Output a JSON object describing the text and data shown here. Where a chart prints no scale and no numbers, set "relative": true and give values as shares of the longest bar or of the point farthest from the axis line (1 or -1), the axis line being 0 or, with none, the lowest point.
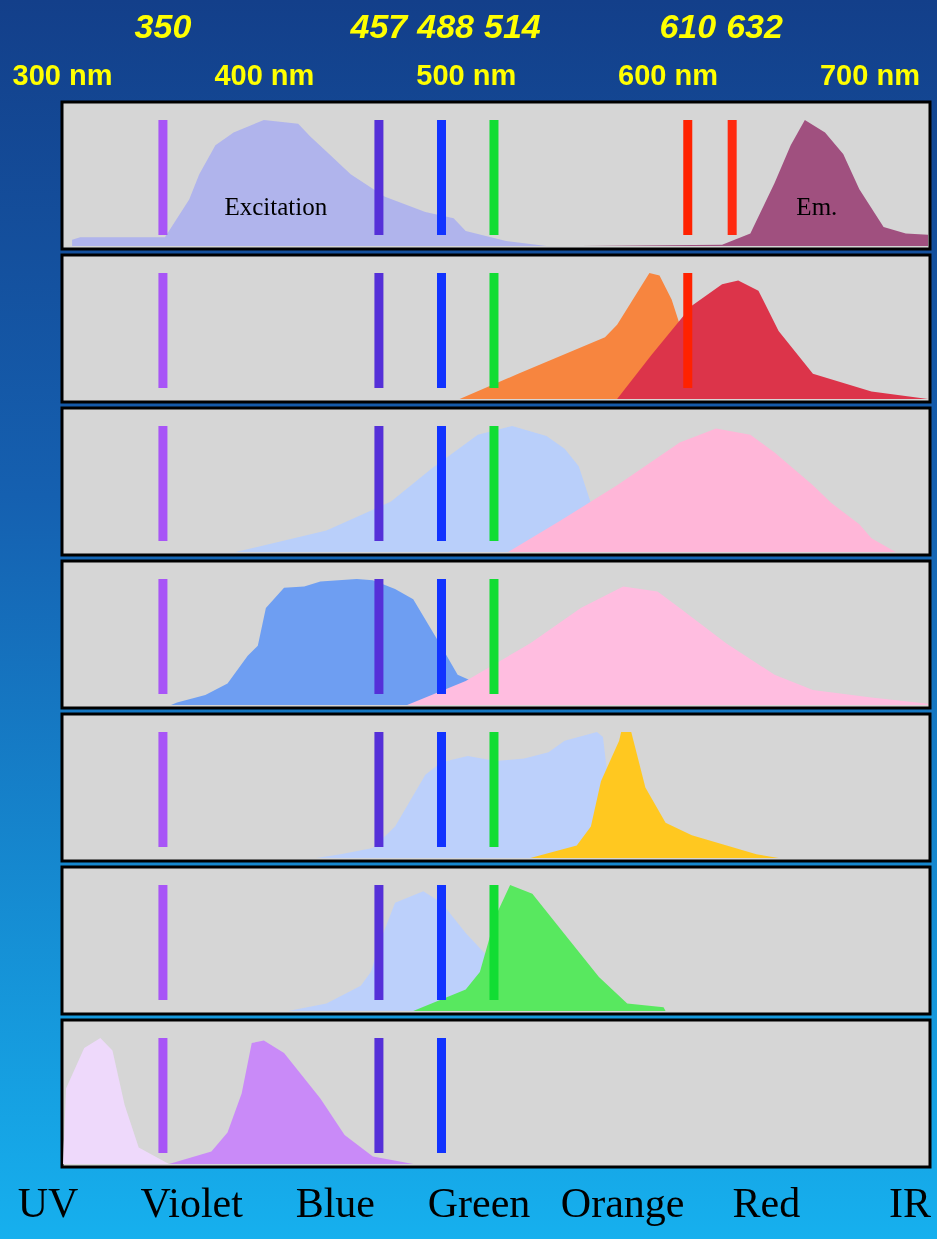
{
  "chart_data": [
    {
      "type": "area",
      "relative": true,
      "xlim": [
        300,
        730
      ],
      "xticks": [
        {
          "value": 300,
          "label": "300 nm"
        },
        {
          "value": 400,
          "label": "400 nm"
        },
        {
          "value": 500,
          "label": "500 nm"
        },
        {
          "value": 600,
          "label": "600 nm"
        },
        {
          "value": 700,
          "label": "700 nm"
        }
      ],
      "ref_lines": [
        {
          "axis": "x",
          "value": 350,
          "label": "350",
          "color": "#a855f7"
        },
        {
          "axis": "x",
          "value": 457,
          "label": "457",
          "color": "#5530d8"
        },
        {
          "axis": "x",
          "value": 488,
          "label": "488",
          "color": "#1133ff"
        },
        {
          "axis": "x",
          "value": 514,
          "label": "514",
          "color": "#11dd33"
        },
        {
          "axis": "x",
          "value": 610,
          "label": "610",
          "color": "#ff2200"
        },
        {
          "axis": "x",
          "value": 632,
          "label": "632",
          "color": "#ff2a10"
        }
      ],
      "series": [
        {
          "name": "Excitation",
          "color": "#b0b4ec",
          "x": [
            305,
            309,
            351,
            363,
            368,
            376,
            385,
            400,
            417,
            423,
            431,
            443,
            460,
            480,
            494,
            500,
            520,
            540
          ],
          "values": [
            0.05,
            0.07,
            0.07,
            0.37,
            0.57,
            0.8,
            0.9,
            1,
            0.97,
            0.87,
            0.75,
            0.57,
            0.39,
            0.27,
            0.22,
            0.12,
            0.04,
            0
          ]
        },
        {
          "name": "Em.",
          "color": "#a0507f",
          "x": [
            557,
            627,
            641,
            653,
            661,
            668,
            678,
            687,
            695,
            707,
            718,
            729
          ],
          "values": [
            0,
            0.01,
            0.1,
            0.5,
            0.8,
            1,
            0.9,
            0.73,
            0.45,
            0.15,
            0.1,
            0.09
          ]
        }
      ]
    },
    {
      "type": "area",
      "relative": true,
      "xlim": [
        300,
        730
      ],
      "ref_lines": [
        {
          "axis": "x",
          "value": 350,
          "color": "#a855f7"
        },
        {
          "axis": "x",
          "value": 457,
          "color": "#5530d8"
        },
        {
          "axis": "x",
          "value": 488,
          "color": "#1133ff"
        },
        {
          "axis": "x",
          "value": 514,
          "color": "#11dd33"
        },
        {
          "axis": "x",
          "value": 610,
          "color": "#ff2200"
        }
      ],
      "series": [
        {
          "color": "#f7853f",
          "x": [
            497,
            526,
            569,
            575,
            591,
            596,
            602,
            609,
            618
          ],
          "values": [
            0,
            0.2,
            0.49,
            0.59,
            1,
            0.98,
            0.79,
            null,
            0
          ]
        },
        {
          "color": "#dc344a",
          "x": [
            575,
            592,
            612,
            627,
            635,
            645,
            655,
            672,
            701,
            729
          ],
          "values": [
            0,
            0.35,
            0.74,
            0.91,
            0.94,
            0.86,
            0.54,
            0.2,
            0.06,
            0
          ]
        }
      ]
    },
    {
      "type": "area",
      "relative": true,
      "xlim": [
        300,
        730
      ],
      "ref_lines": [
        {
          "axis": "x",
          "value": 350,
          "color": "#a855f7"
        },
        {
          "axis": "x",
          "value": 457,
          "color": "#5530d8"
        },
        {
          "axis": "x",
          "value": 488,
          "color": "#1133ff"
        },
        {
          "axis": "x",
          "value": 514,
          "color": "#11dd33"
        }
      ],
      "series": [
        {
          "color": "#b9cffa",
          "x": [
            386,
            431,
            463,
            483,
            506,
            523,
            540,
            549,
            556,
            565,
            570
          ],
          "values": [
            0,
            0.17,
            0.4,
            0.66,
            0.93,
            1,
            0.92,
            0.82,
            0.68,
            null,
            0
          ]
        },
        {
          "color": "#ffb6d8",
          "x": [
            521,
            547,
            575,
            606,
            624,
            641,
            653,
            672,
            681,
            695,
            701,
            713
          ],
          "values": [
            0,
            0.25,
            0.53,
            0.87,
            0.98,
            0.93,
            0.79,
            0.53,
            0.39,
            0.22,
            0.11,
            0
          ]
        }
      ]
    },
    {
      "type": "area",
      "relative": true,
      "xlim": [
        300,
        730
      ],
      "ref_lines": [
        {
          "axis": "x",
          "value": 350,
          "color": "#a855f7"
        },
        {
          "axis": "x",
          "value": 457,
          "color": "#5530d8"
        },
        {
          "axis": "x",
          "value": 488,
          "color": "#1133ff"
        },
        {
          "axis": "x",
          "value": 514,
          "color": "#11dd33"
        }
      ],
      "series": [
        {
          "color": "#6e9ef2",
          "x": [
            354,
            357,
            371,
            382,
            392,
            397,
            401,
            410,
            420,
            428,
            446,
            454,
            465,
            474,
            487,
            496,
            503,
            513
          ],
          "values": [
            0,
            0.02,
            0.08,
            0.17,
            0.39,
            0.47,
            0.77,
            0.93,
            0.94,
            0.98,
            1,
            0.99,
            0.92,
            0.84,
            0.49,
            0.24,
            0.19,
            0
          ]
        },
        {
          "color": "#ffbde0",
          "x": [
            471,
            500,
            532,
            557,
            578,
            595,
            606,
            629,
            653,
            672,
            701,
            729
          ],
          "values": [
            0,
            0.19,
            0.49,
            0.77,
            0.94,
            0.9,
            0.77,
            0.49,
            0.24,
            0.12,
            0.06,
            0.01
          ]
        }
      ]
    },
    {
      "type": "area",
      "relative": true,
      "xlim": [
        300,
        730
      ],
      "ref_lines": [
        {
          "axis": "x",
          "value": 350,
          "color": "#a855f7"
        },
        {
          "axis": "x",
          "value": 457,
          "color": "#5530d8"
        },
        {
          "axis": "x",
          "value": 488,
          "color": "#1133ff"
        },
        {
          "axis": "x",
          "value": 514,
          "color": "#11dd33"
        }
      ],
      "series": [
        {
          "color": "#bcd0fb",
          "x": [
            426,
            438,
            454,
            465,
            480,
            488,
            501,
            515,
            529,
            541,
            549,
            565,
            568,
            570,
            575
          ],
          "values": [
            0,
            0.03,
            0.08,
            0.25,
            0.66,
            0.76,
            0.81,
            0.77,
            0.79,
            0.84,
            0.93,
            1,
            0.96,
            null,
            0
          ]
        },
        {
          "color": "#ffc820",
          "x": [
            532,
            555,
            562,
            567,
            576,
            577,
            582,
            589,
            599,
            612,
            644,
            655
          ],
          "values": [
            0,
            0.1,
            0.25,
            0.61,
            0.93,
            1,
            1,
            0.56,
            0.28,
            0.18,
            0.03,
            0
          ]
        }
      ]
    },
    {
      "type": "area",
      "relative": true,
      "xlim": [
        300,
        730
      ],
      "ref_lines": [
        {
          "axis": "x",
          "value": 350,
          "color": "#a855f7"
        },
        {
          "axis": "x",
          "value": 457,
          "color": "#5530d8"
        },
        {
          "axis": "x",
          "value": 488,
          "color": "#1133ff"
        },
        {
          "axis": "x",
          "value": 514,
          "color": "#11dd33"
        }
      ],
      "series": [
        {
          "color": "#bcd0fb",
          "x": [
            412,
            431,
            448,
            453,
            458,
            465,
            479,
            488,
            500,
            511,
            526,
            546
          ],
          "values": [
            0,
            0.06,
            0.2,
            0.31,
            0.57,
            0.86,
            0.95,
            0.86,
            0.62,
            0.43,
            null,
            0
          ]
        },
        {
          "color": "#58e85f",
          "x": [
            474,
            477,
            500,
            507,
            515,
            522,
            533,
            552,
            566,
            580,
            598,
            599
          ],
          "values": [
            0,
            0.02,
            0.17,
            0.31,
            0.76,
            1,
            0.93,
            0.55,
            0.27,
            0.06,
            0.03,
            0
          ]
        }
      ]
    },
    {
      "type": "area",
      "relative": true,
      "xlim": [
        300,
        730
      ],
      "annotations": [
        "UV",
        "Violet",
        "Blue",
        "Green",
        "Orange",
        "Red",
        "IR"
      ],
      "ref_lines": [
        {
          "axis": "x",
          "value": 350,
          "color": "#a855f7"
        },
        {
          "axis": "x",
          "value": 457,
          "color": "#5530d8"
        },
        {
          "axis": "x",
          "value": 488,
          "color": "#1133ff"
        }
      ],
      "series": [
        {
          "color": "#eed9fb",
          "x": [
            300.5,
            302,
            311,
            319,
            325,
            331,
            338,
            353
          ],
          "values": [
            0,
            0.6,
            0.92,
            1,
            0.9,
            0.47,
            0.13,
            0
          ]
        },
        {
          "color": "#c98af8",
          "x": [
            353,
            374,
            382,
            389,
            394,
            400,
            410,
            428,
            440,
            454,
            474
          ],
          "values": [
            0,
            0.1,
            0.25,
            0.56,
            0.96,
            0.98,
            0.88,
            0.52,
            0.23,
            0.06,
            0
          ]
        }
      ]
    }
  ]
}
